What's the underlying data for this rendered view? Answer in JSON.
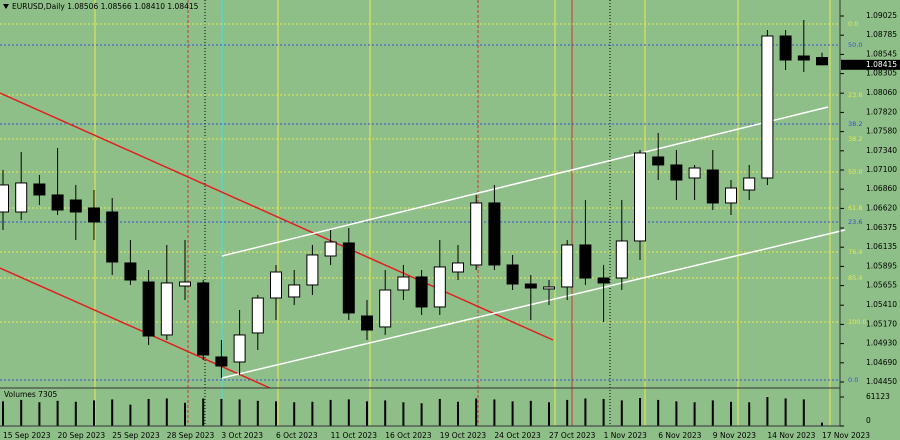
{
  "chart_data": [
    {
      "type": "candlestick",
      "title": "EURUSD,Daily  1.08506 1.08566 1.08410 1.08415",
      "x": [
        "15 Sep 2023",
        null,
        null,
        "20 Sep 2023",
        null,
        null,
        "25 Sep 2023",
        null,
        null,
        "28 Sep 2023",
        null,
        null,
        "3 Oct 2023",
        null,
        null,
        "6 Oct 2023",
        null,
        null,
        "11 Oct 2023",
        null,
        null,
        "16 Oct 2023",
        null,
        null,
        "19 Oct 2023",
        null,
        null,
        "24 Oct 2023",
        null,
        null,
        "27 Oct 2023",
        null,
        null,
        "1 Nov 2023",
        null,
        null,
        "6 Nov 2023",
        null,
        null,
        "9 Nov 2023",
        null,
        null,
        "14 Nov 2023",
        null,
        null,
        "17 Nov 2023"
      ],
      "open": [
        1.06575,
        1.06575,
        1.06925,
        1.06788,
        1.06725,
        1.06625,
        1.06575,
        1.05938,
        1.057,
        1.05038,
        1.0565,
        1.05688,
        1.04763,
        1.047,
        1.05063,
        1.055,
        1.05513,
        1.05663,
        1.06025,
        1.06188,
        1.05275,
        1.05138,
        1.056,
        1.05763,
        1.05388,
        1.05825,
        1.05913,
        1.06688,
        1.05913,
        1.05675,
        1.05613,
        1.05638,
        1.06163,
        1.0575,
        1.0575,
        1.06213,
        1.07263,
        1.07163,
        1.07,
        1.071,
        1.06688,
        1.0685,
        1.07,
        1.08775,
        1.08525,
        1.08506
      ],
      "high": [
        1.071,
        1.07325,
        1.07038,
        1.07375,
        1.06913,
        1.0685,
        1.0675,
        1.06225,
        1.0585,
        1.06163,
        1.06225,
        1.05725,
        1.04975,
        1.0535,
        1.05538,
        1.05913,
        1.0585,
        1.06163,
        1.0635,
        1.06375,
        1.05475,
        1.0585,
        1.05913,
        1.0585,
        1.06225,
        1.06163,
        1.06788,
        1.06913,
        1.06038,
        1.05788,
        1.05725,
        1.06225,
        1.06725,
        1.05913,
        1.06725,
        1.0735,
        1.07563,
        1.0735,
        1.07163,
        1.0735,
        1.06975,
        1.07163,
        1.0885,
        1.0885,
        1.08975,
        1.08566
      ],
      "low": [
        1.0635,
        1.06475,
        1.06663,
        1.06538,
        1.06225,
        1.06225,
        1.05788,
        1.05663,
        1.04913,
        1.04975,
        1.05475,
        1.04725,
        1.045,
        1.04538,
        1.0485,
        1.05225,
        1.05413,
        1.05538,
        1.05913,
        1.05225,
        1.04975,
        1.05038,
        1.05475,
        1.05288,
        1.05288,
        1.05725,
        1.0585,
        1.0585,
        1.056,
        1.05225,
        1.05413,
        1.05475,
        1.05663,
        1.052,
        1.056,
        1.05975,
        1.06975,
        1.06725,
        1.06725,
        1.066,
        1.06538,
        1.06725,
        1.06913,
        1.0835,
        1.08325,
        1.0841
      ],
      "close": [
        1.06913,
        1.06938,
        1.06788,
        1.066,
        1.06575,
        1.0645,
        1.0595,
        1.05725,
        1.05025,
        1.05688,
        1.057,
        1.04788,
        1.0465,
        1.05038,
        1.055,
        1.05825,
        1.05663,
        1.06038,
        1.062,
        1.05313,
        1.051,
        1.056,
        1.05763,
        1.05388,
        1.05888,
        1.05938,
        1.06688,
        1.05913,
        1.05675,
        1.05625,
        1.05638,
        1.06163,
        1.0575,
        1.05688,
        1.06213,
        1.07313,
        1.07163,
        1.06975,
        1.07125,
        1.06688,
        1.06875,
        1.07,
        1.08775,
        1.08475,
        1.08475,
        1.08415
      ],
      "up_color": "#ffffff",
      "down_color": "#000000",
      "ylim": [
        1.04375,
        1.09225
      ],
      "yticks": [
        1.09025,
        1.08785,
        1.08545,
        1.08305,
        {
          "value": 1.0806,
          "label": "1.08060"
        },
        {
          "value": 1.0782,
          "label": "1.07820"
        },
        {
          "value": 1.0758,
          "label": "1.07580"
        },
        {
          "value": 1.0734,
          "label": "1.07340"
        },
        {
          "value": 1.071,
          "label": "1.07100"
        },
        {
          "value": 1.0686,
          "label": "1.06860"
        },
        {
          "value": 1.0662,
          "label": "1.06620"
        },
        1.06375,
        1.06135,
        1.05895,
        1.05655,
        {
          "value": 1.0541,
          "label": "1.05410"
        },
        {
          "value": 1.0517,
          "label": "1.05170"
        },
        {
          "value": 1.0493,
          "label": "1.04930"
        },
        {
          "value": 1.0469,
          "label": "1.04690"
        },
        {
          "value": 1.0445,
          "label": "1.04450"
        }
      ],
      "last_price": 1.08415,
      "fib_levels": [
        {
          "label": "0.0",
          "value": 1.08925,
          "color": "#e8e84a"
        },
        {
          "label": "23.6",
          "value": 1.08038,
          "color": "#e8e84a"
        },
        {
          "label": "38.2",
          "value": 1.07488,
          "color": "#e8e84a"
        },
        {
          "label": "50.0",
          "value": 1.07075,
          "color": "#e8e84a"
        },
        {
          "label": "61.8",
          "value": 1.06625,
          "color": "#e8e84a"
        },
        {
          "label": "76.4",
          "value": 1.06075,
          "color": "#e8e84a"
        },
        {
          "label": "85.4",
          "value": 1.0575,
          "color": "#e8e84a"
        },
        {
          "label": "100.0",
          "value": 1.052,
          "color": "#e8e84a"
        },
        {
          "label": "50.0",
          "value": 1.08663,
          "color": "#3050d8"
        },
        {
          "label": "38.2",
          "value": 1.07675,
          "color": "#3050d8"
        },
        {
          "label": "23.6",
          "value": 1.0645,
          "color": "#3050d8"
        },
        {
          "label": "0.0",
          "value": 1.04475,
          "color": "#3050d8"
        }
      ]
    },
    {
      "type": "bar",
      "title": "Volumes 7305",
      "values": [
        52000,
        55000,
        50000,
        53000,
        51000,
        54000,
        56000,
        45000,
        57000,
        58000,
        49000,
        58000,
        57000,
        56000,
        53000,
        52000,
        50000,
        51000,
        55000,
        56000,
        52000,
        54000,
        50000,
        48000,
        57000,
        51000,
        58000,
        56000,
        52000,
        53000,
        50000,
        55000,
        58000,
        57000,
        54000,
        59000,
        55000,
        52000,
        50000,
        54000,
        51000,
        50000,
        61000,
        58000,
        56000,
        7305
      ],
      "color": "#000000",
      "ylim": [
        0,
        61123
      ],
      "yticks": [
        61123,
        0
      ]
    }
  ]
}
